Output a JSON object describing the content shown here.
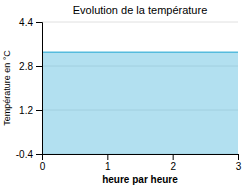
{
  "chart_data": {
    "type": "area",
    "title": "Evolution de la température",
    "xlabel": "heure par heure",
    "ylabel": "Température en °C",
    "x": [
      0,
      3
    ],
    "values": [
      3.3,
      3.3
    ],
    "color": "#55bbdd",
    "xlim": [
      0,
      3
    ],
    "ylim": [
      -0.4,
      4.4
    ],
    "xticks": [
      0,
      1,
      2,
      3
    ],
    "yticks": [
      -0.4,
      1.2,
      2.8,
      4.4
    ],
    "grid": true
  }
}
